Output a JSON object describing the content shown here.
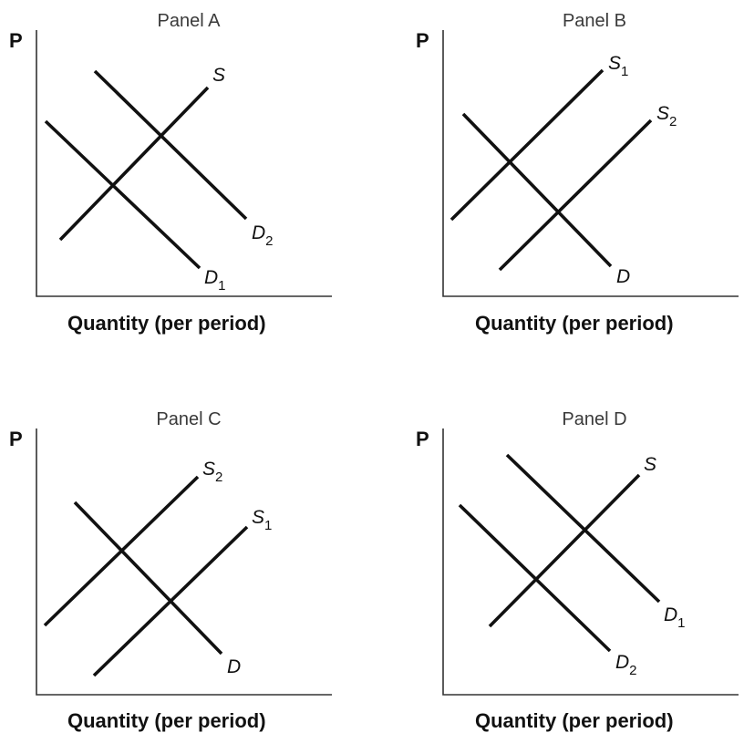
{
  "figure": {
    "axis_color": "#333333",
    "line_color": "#111111",
    "panels": [
      {
        "title": "Panel A",
        "y_axis_label": "P",
        "x_axis_label": "Quantity (per period)",
        "curves": [
          {
            "id": "S",
            "letter": "S",
            "sub": ""
          },
          {
            "id": "D1",
            "letter": "D",
            "sub": "1"
          },
          {
            "id": "D2",
            "letter": "D",
            "sub": "2"
          }
        ]
      },
      {
        "title": "Panel B",
        "y_axis_label": "P",
        "x_axis_label": "Quantity (per period)",
        "curves": [
          {
            "id": "S1",
            "letter": "S",
            "sub": "1"
          },
          {
            "id": "S2",
            "letter": "S",
            "sub": "2"
          },
          {
            "id": "D",
            "letter": "D",
            "sub": ""
          }
        ]
      },
      {
        "title": "Panel C",
        "y_axis_label": "P",
        "x_axis_label": "Quantity (per period)",
        "curves": [
          {
            "id": "S2",
            "letter": "S",
            "sub": "2"
          },
          {
            "id": "S1",
            "letter": "S",
            "sub": "1"
          },
          {
            "id": "D",
            "letter": "D",
            "sub": ""
          }
        ]
      },
      {
        "title": "Panel D",
        "y_axis_label": "P",
        "x_axis_label": "Quantity (per period)",
        "curves": [
          {
            "id": "S",
            "letter": "S",
            "sub": ""
          },
          {
            "id": "D1",
            "letter": "D",
            "sub": "1"
          },
          {
            "id": "D2",
            "letter": "D",
            "sub": "2"
          }
        ]
      }
    ]
  }
}
